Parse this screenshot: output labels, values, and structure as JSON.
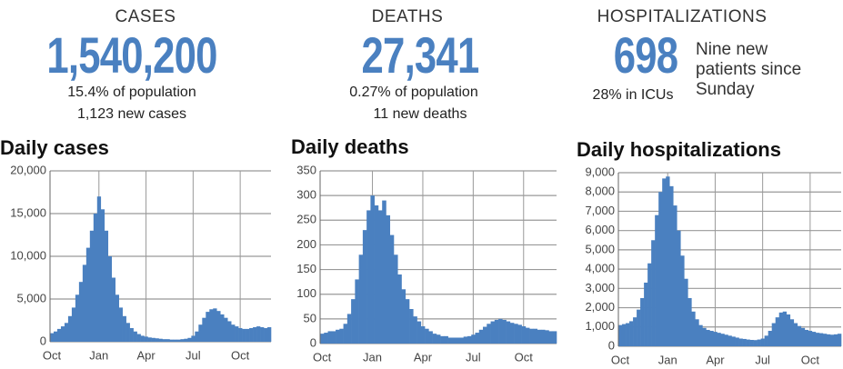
{
  "stats": [
    {
      "label": "CASES",
      "value": "1,540,200",
      "lines": [
        "15.4% of population",
        "1,123 new cases"
      ]
    },
    {
      "label": "DEATHS",
      "value": "27,341",
      "lines": [
        "0.27% of population",
        "11 new deaths"
      ]
    },
    {
      "label": "HOSPITALIZATIONS",
      "value": "698",
      "lines": [
        "28% in ICUs"
      ],
      "note": "Nine new patients since Sunday"
    }
  ],
  "chart_data": [
    {
      "type": "bar",
      "title": "Daily cases",
      "color": "#4a80c0",
      "grid": true,
      "categories": [
        "Oct",
        null,
        null,
        null,
        null,
        null,
        null,
        null,
        null,
        null,
        null,
        null,
        null,
        "Jan",
        null,
        null,
        null,
        null,
        null,
        null,
        null,
        null,
        null,
        null,
        null,
        null,
        "Apr",
        null,
        null,
        null,
        null,
        null,
        null,
        null,
        null,
        null,
        null,
        null,
        null,
        "Jul",
        null,
        null,
        null,
        null,
        null,
        null,
        null,
        null,
        null,
        null,
        null,
        null,
        "Oct",
        null,
        null,
        null,
        null,
        null,
        null,
        null,
        null
      ],
      "values": [
        1000,
        1200,
        1500,
        1800,
        2200,
        3000,
        4000,
        5500,
        7000,
        9000,
        11000,
        13000,
        15000,
        17000,
        15500,
        13000,
        10000,
        7500,
        5500,
        4000,
        3000,
        2200,
        1600,
        1200,
        900,
        700,
        600,
        500,
        450,
        400,
        350,
        300,
        300,
        250,
        250,
        250,
        300,
        350,
        450,
        700,
        1200,
        2000,
        2800,
        3500,
        3800,
        3900,
        3600,
        3200,
        2800,
        2400,
        2000,
        1800,
        1600,
        1500,
        1500,
        1600,
        1700,
        1800,
        1700,
        1600,
        1700
      ],
      "ylim": [
        0,
        20000
      ],
      "yticks": [
        0,
        {
          "value": 5000,
          "label": "5,000"
        },
        {
          "value": 10000,
          "label": "10,000"
        },
        {
          "value": 15000,
          "label": "15,000"
        },
        {
          "value": 20000,
          "label": "20,000"
        }
      ]
    },
    {
      "type": "bar",
      "title": "Daily deaths",
      "color": "#4a80c0",
      "grid": true,
      "categories": [
        "Oct",
        null,
        null,
        null,
        null,
        null,
        null,
        null,
        null,
        null,
        null,
        null,
        null,
        "Jan",
        null,
        null,
        null,
        null,
        null,
        null,
        null,
        null,
        null,
        null,
        null,
        null,
        "Apr",
        null,
        null,
        null,
        null,
        null,
        null,
        null,
        null,
        null,
        null,
        null,
        null,
        "Jul",
        null,
        null,
        null,
        null,
        null,
        null,
        null,
        null,
        null,
        null,
        null,
        null,
        "Oct",
        null,
        null,
        null,
        null,
        null,
        null,
        null,
        null
      ],
      "values": [
        20,
        22,
        25,
        25,
        28,
        30,
        40,
        60,
        90,
        130,
        180,
        230,
        270,
        300,
        280,
        270,
        290,
        260,
        220,
        180,
        140,
        110,
        90,
        70,
        55,
        45,
        35,
        30,
        25,
        20,
        18,
        15,
        15,
        12,
        12,
        12,
        12,
        14,
        15,
        18,
        22,
        28,
        34,
        40,
        45,
        48,
        50,
        48,
        45,
        42,
        40,
        38,
        35,
        32,
        30,
        30,
        28,
        28,
        27,
        25,
        25
      ],
      "ylim": [
        0,
        350
      ],
      "yticks": [
        0,
        50,
        100,
        150,
        200,
        250,
        300,
        350
      ]
    },
    {
      "type": "bar",
      "title": "Daily hospitalizations",
      "color": "#4a80c0",
      "grid": true,
      "categories": [
        "Oct",
        null,
        null,
        null,
        null,
        null,
        null,
        null,
        null,
        null,
        null,
        null,
        null,
        "Jan",
        null,
        null,
        null,
        null,
        null,
        null,
        null,
        null,
        null,
        null,
        null,
        null,
        "Apr",
        null,
        null,
        null,
        null,
        null,
        null,
        null,
        null,
        null,
        null,
        null,
        null,
        "Jul",
        null,
        null,
        null,
        null,
        null,
        null,
        null,
        null,
        null,
        null,
        null,
        null,
        "Oct",
        null,
        null,
        null,
        null,
        null,
        null,
        null,
        null
      ],
      "values": [
        1100,
        1150,
        1200,
        1300,
        1500,
        1900,
        2500,
        3300,
        4300,
        5500,
        6800,
        8000,
        8700,
        8800,
        8300,
        7300,
        6000,
        4700,
        3500,
        2500,
        1800,
        1400,
        1100,
        950,
        850,
        800,
        750,
        700,
        650,
        600,
        550,
        500,
        450,
        400,
        380,
        350,
        330,
        320,
        350,
        400,
        550,
        800,
        1200,
        1500,
        1750,
        1800,
        1650,
        1400,
        1200,
        1050,
        950,
        850,
        800,
        750,
        700,
        680,
        650,
        620,
        600,
        620,
        650
      ],
      "ylim": [
        0,
        9000
      ],
      "yticks": [
        0,
        {
          "value": 1000,
          "label": "1,000"
        },
        {
          "value": 2000,
          "label": "2,000"
        },
        {
          "value": 3000,
          "label": "3,000"
        },
        {
          "value": 4000,
          "label": "4,000"
        },
        {
          "value": 5000,
          "label": "5,000"
        },
        {
          "value": 6000,
          "label": "6,000"
        },
        {
          "value": 7000,
          "label": "7,000"
        },
        {
          "value": 8000,
          "label": "8,000"
        },
        {
          "value": 9000,
          "label": "9,000"
        }
      ]
    }
  ]
}
